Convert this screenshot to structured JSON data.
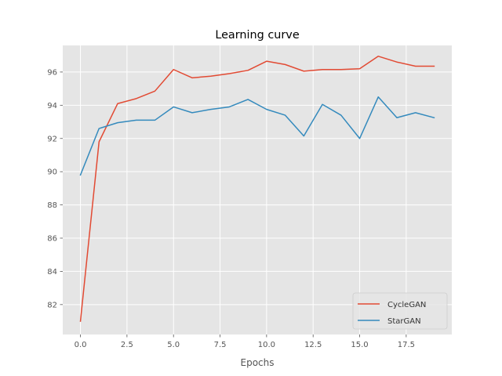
{
  "chart_data": {
    "type": "line",
    "title": "Learning curve",
    "xlabel": "Epochs",
    "ylabel": "",
    "xlim": [
      -0.95,
      19.95
    ],
    "ylim": [
      80.2,
      97.6
    ],
    "xticks": [
      0.0,
      2.5,
      5.0,
      7.5,
      10.0,
      12.5,
      15.0,
      17.5
    ],
    "xtick_labels": [
      "0.0",
      "2.5",
      "5.0",
      "7.5",
      "10.0",
      "12.5",
      "15.0",
      "17.5"
    ],
    "yticks": [
      82,
      84,
      86,
      88,
      90,
      92,
      94,
      96
    ],
    "ytick_labels": [
      "82",
      "84",
      "86",
      "88",
      "90",
      "92",
      "94",
      "96"
    ],
    "grid": true,
    "legend_position": "bottom-right",
    "x": [
      0,
      1,
      2,
      3,
      4,
      5,
      6,
      7,
      8,
      9,
      10,
      11,
      12,
      13,
      14,
      15,
      16,
      17,
      18,
      19
    ],
    "series": [
      {
        "name": "CycleGAN",
        "color": "#E24A33",
        "values": [
          81.0,
          91.8,
          94.1,
          94.4,
          94.85,
          96.15,
          95.65,
          95.75,
          95.9,
          96.1,
          96.65,
          96.45,
          96.05,
          96.15,
          96.15,
          96.2,
          96.95,
          96.6,
          96.35,
          96.35
        ]
      },
      {
        "name": "StarGAN",
        "color": "#348ABD",
        "values": [
          89.8,
          92.6,
          92.95,
          93.1,
          93.1,
          93.9,
          93.55,
          93.75,
          93.9,
          94.35,
          93.75,
          93.4,
          92.15,
          94.05,
          93.4,
          92.0,
          94.5,
          93.25,
          93.55,
          93.25
        ]
      }
    ]
  }
}
